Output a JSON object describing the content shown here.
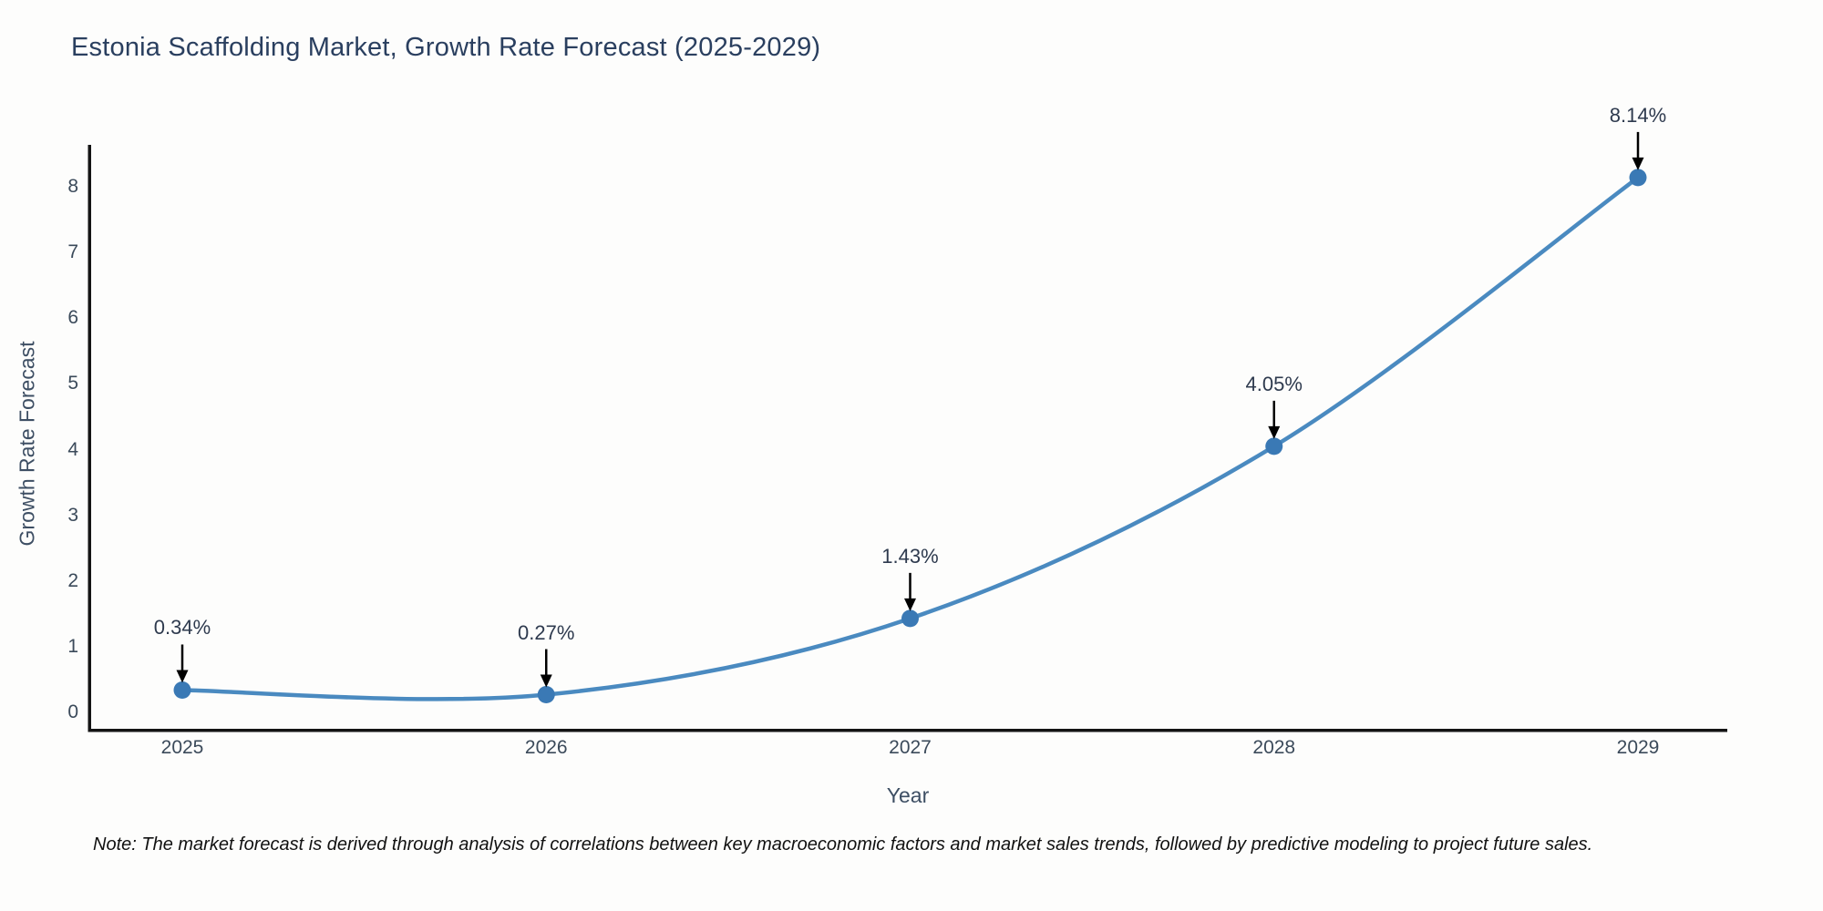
{
  "title": "Estonia Scaffolding Market, Growth Rate Forecast (2025-2029)",
  "note": "Note: The market forecast is derived through analysis of correlations between key macroeconomic factors and market sales trends, followed by predictive modeling to project future sales.",
  "chart_data": {
    "type": "line",
    "title": "Estonia Scaffolding Market, Growth Rate Forecast (2025-2029)",
    "xlabel": "Year",
    "ylabel": "Growth Rate Forecast",
    "x": [
      2025,
      2026,
      2027,
      2028,
      2029
    ],
    "series": [
      {
        "name": "Growth Rate Forecast",
        "values": [
          0.34,
          0.27,
          1.43,
          4.05,
          8.14
        ]
      }
    ],
    "point_labels": [
      "0.34%",
      "0.27%",
      "1.43%",
      "4.05%",
      "8.14%"
    ],
    "xticks": [
      "2025",
      "2026",
      "2027",
      "2028",
      "2029"
    ],
    "yticks": [
      0,
      1,
      2,
      3,
      4,
      5,
      6,
      7,
      8
    ],
    "ylim": [
      -0.25,
      8.62
    ],
    "grid": false,
    "legend": "none",
    "smooth": true,
    "colors": {
      "line": "#4a8ac0",
      "marker": "#3a79b5",
      "arrow": "#000000",
      "axis": "#141414",
      "title": "#2a3f5f",
      "axis_label": "#3d4e63",
      "tick_label": "#3b4a5a"
    }
  }
}
